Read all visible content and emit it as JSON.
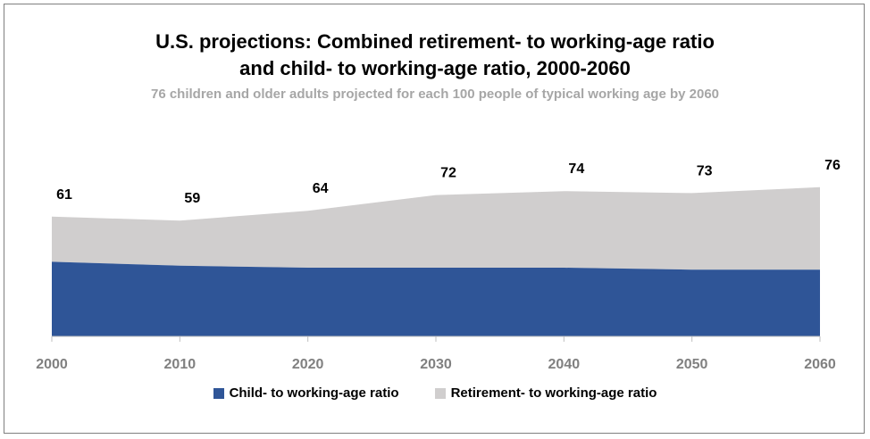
{
  "chart_data": {
    "type": "area",
    "stacked": true,
    "title_line1": "U.S. projections: Combined retirement- to working-age ratio",
    "title_line2": "and child- to working-age ratio, 2000-2060",
    "subtitle": "76 children and older adults projected for each 100 people of typical working age by 2060",
    "x": [
      "2000",
      "2010",
      "2020",
      "2030",
      "2040",
      "2050",
      "2060"
    ],
    "series": [
      {
        "name": "Child- to working-age ratio",
        "color": "#2f5597",
        "values": [
          38,
          36,
          35,
          35,
          35,
          34,
          34
        ]
      },
      {
        "name": "Retirement- to working-age ratio",
        "color": "#d0cece",
        "values": [
          23,
          23,
          29,
          37,
          39,
          39,
          42
        ]
      }
    ],
    "totals": [
      "61",
      "59",
      "64",
      "72",
      "74",
      "73",
      "76"
    ],
    "ylim": [
      0,
      110
    ],
    "grid": false,
    "legend_position": "bottom"
  }
}
